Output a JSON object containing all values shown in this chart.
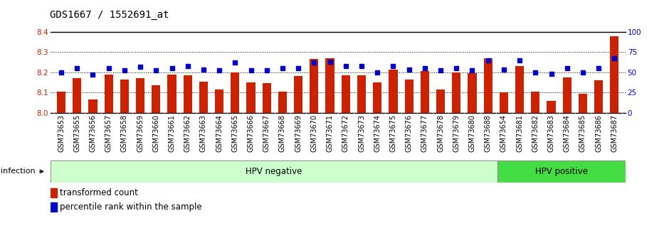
{
  "title": "GDS1667 / 1552691_at",
  "samples": [
    "GSM73653",
    "GSM73655",
    "GSM73656",
    "GSM73657",
    "GSM73658",
    "GSM73659",
    "GSM73660",
    "GSM73661",
    "GSM73662",
    "GSM73663",
    "GSM73664",
    "GSM73665",
    "GSM73666",
    "GSM73667",
    "GSM73668",
    "GSM73669",
    "GSM73670",
    "GSM73671",
    "GSM73672",
    "GSM73673",
    "GSM73674",
    "GSM73675",
    "GSM73676",
    "GSM73677",
    "GSM73678",
    "GSM73679",
    "GSM73680",
    "GSM73688",
    "GSM73654",
    "GSM73681",
    "GSM73682",
    "GSM73683",
    "GSM73684",
    "GSM73685",
    "GSM73686",
    "GSM73687"
  ],
  "bar_values": [
    8.105,
    8.17,
    8.065,
    8.19,
    8.165,
    8.17,
    8.135,
    8.19,
    8.185,
    8.155,
    8.115,
    8.2,
    8.15,
    8.145,
    8.105,
    8.18,
    8.265,
    8.27,
    8.185,
    8.185,
    8.15,
    8.215,
    8.165,
    8.205,
    8.115,
    8.2,
    8.195,
    8.27,
    8.1,
    8.23,
    8.105,
    8.06,
    8.175,
    8.095,
    8.16,
    8.38
  ],
  "percentile_values": [
    50,
    55,
    47,
    55,
    52,
    57,
    52,
    55,
    58,
    53,
    52,
    62,
    52,
    52,
    55,
    55,
    62,
    63,
    58,
    58,
    50,
    58,
    53,
    55,
    52,
    55,
    52,
    65,
    53,
    65,
    50,
    48,
    55,
    50,
    55,
    67
  ],
  "ylim_left": [
    8.0,
    8.4
  ],
  "ylim_right": [
    0,
    100
  ],
  "yticks_left": [
    8.0,
    8.1,
    8.2,
    8.3,
    8.4
  ],
  "yticks_right": [
    0,
    25,
    50,
    75,
    100
  ],
  "bar_color": "#cc2200",
  "marker_color": "#0000cc",
  "bar_bottom": 8.0,
  "hpv_negative_count": 28,
  "hpv_positive_count": 8,
  "hpv_neg_color": "#ccffcc",
  "hpv_pos_color": "#44dd44",
  "xtick_bg_color": "#dddddd",
  "infection_label": "infection",
  "hpv_neg_label": "HPV negative",
  "hpv_pos_label": "HPV positive",
  "legend_bar_label": "transformed count",
  "legend_marker_label": "percentile rank within the sample",
  "background_color": "#ffffff",
  "title_fontsize": 10,
  "tick_fontsize": 7,
  "ylabel_left_color": "#cc2200",
  "ylabel_right_color": "#0000cc"
}
